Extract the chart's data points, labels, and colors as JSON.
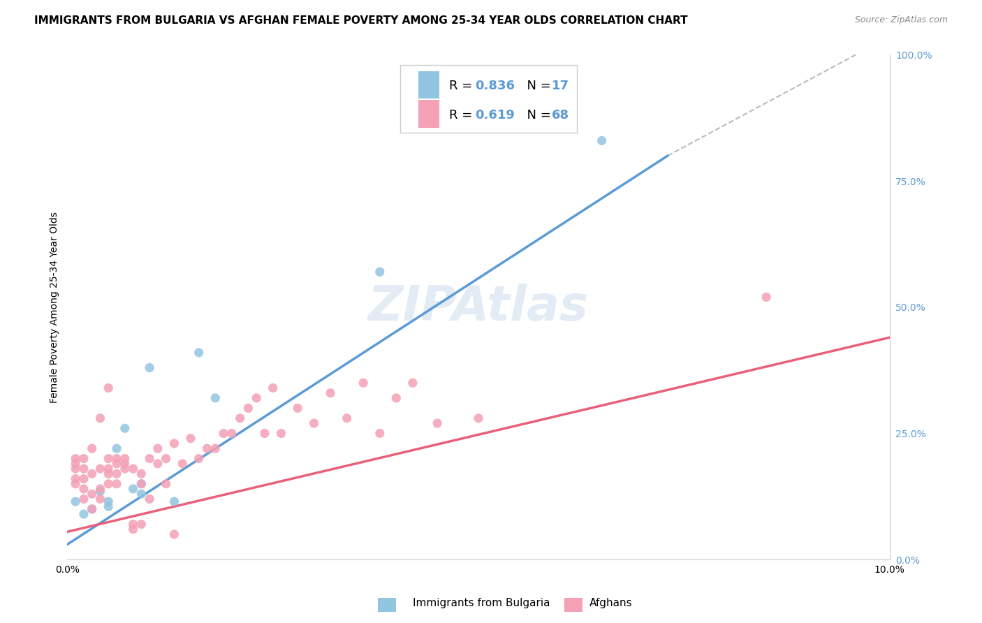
{
  "title": "IMMIGRANTS FROM BULGARIA VS AFGHAN FEMALE POVERTY AMONG 25-34 YEAR OLDS CORRELATION CHART",
  "source": "Source: ZipAtlas.com",
  "ylabel": "Female Poverty Among 25-34 Year Olds",
  "xlim": [
    0.0,
    0.1
  ],
  "ylim": [
    0.0,
    1.0
  ],
  "blue_color": "#92C5E0",
  "pink_color": "#F4A0B5",
  "blue_line_color": "#5B9BD5",
  "pink_line_color": "#E8607A",
  "dashed_line_color": "#AAAAAA",
  "blue_scatter_x": [
    0.001,
    0.002,
    0.003,
    0.004,
    0.005,
    0.005,
    0.006,
    0.007,
    0.008,
    0.009,
    0.01,
    0.013,
    0.016,
    0.018,
    0.038,
    0.065,
    0.009
  ],
  "blue_scatter_y": [
    0.115,
    0.09,
    0.1,
    0.135,
    0.115,
    0.105,
    0.22,
    0.26,
    0.14,
    0.15,
    0.38,
    0.115,
    0.41,
    0.32,
    0.57,
    0.83,
    0.13
  ],
  "pink_scatter_x": [
    0.001,
    0.001,
    0.001,
    0.001,
    0.001,
    0.002,
    0.002,
    0.002,
    0.002,
    0.002,
    0.003,
    0.003,
    0.003,
    0.003,
    0.004,
    0.004,
    0.004,
    0.004,
    0.005,
    0.005,
    0.005,
    0.005,
    0.005,
    0.006,
    0.006,
    0.006,
    0.006,
    0.007,
    0.007,
    0.007,
    0.008,
    0.008,
    0.008,
    0.009,
    0.009,
    0.009,
    0.01,
    0.01,
    0.011,
    0.011,
    0.012,
    0.012,
    0.013,
    0.013,
    0.014,
    0.015,
    0.016,
    0.017,
    0.018,
    0.019,
    0.02,
    0.021,
    0.022,
    0.023,
    0.024,
    0.025,
    0.026,
    0.028,
    0.03,
    0.032,
    0.034,
    0.036,
    0.038,
    0.04,
    0.042,
    0.045,
    0.085,
    0.05
  ],
  "pink_scatter_y": [
    0.15,
    0.16,
    0.18,
    0.19,
    0.2,
    0.12,
    0.14,
    0.16,
    0.18,
    0.2,
    0.1,
    0.13,
    0.17,
    0.22,
    0.12,
    0.14,
    0.18,
    0.28,
    0.15,
    0.17,
    0.18,
    0.2,
    0.34,
    0.15,
    0.17,
    0.19,
    0.2,
    0.18,
    0.19,
    0.2,
    0.06,
    0.07,
    0.18,
    0.07,
    0.15,
    0.17,
    0.12,
    0.2,
    0.19,
    0.22,
    0.15,
    0.2,
    0.23,
    0.05,
    0.19,
    0.24,
    0.2,
    0.22,
    0.22,
    0.25,
    0.25,
    0.28,
    0.3,
    0.32,
    0.25,
    0.34,
    0.25,
    0.3,
    0.27,
    0.33,
    0.28,
    0.35,
    0.25,
    0.32,
    0.35,
    0.27,
    0.52,
    0.28
  ],
  "blue_line_x": [
    0.0,
    0.073
  ],
  "blue_line_y": [
    0.03,
    0.8
  ],
  "dashed_line_x": [
    0.073,
    0.105
  ],
  "dashed_line_y": [
    0.8,
    1.08
  ],
  "pink_line_x": [
    0.0,
    0.1
  ],
  "pink_line_y": [
    0.055,
    0.44
  ],
  "background_color": "#FFFFFF",
  "grid_color": "#DDDDDD",
  "watermark": "ZIPAtlas",
  "title_fontsize": 11,
  "axis_label_fontsize": 10,
  "tick_fontsize": 10,
  "legend_fontsize": 13
}
